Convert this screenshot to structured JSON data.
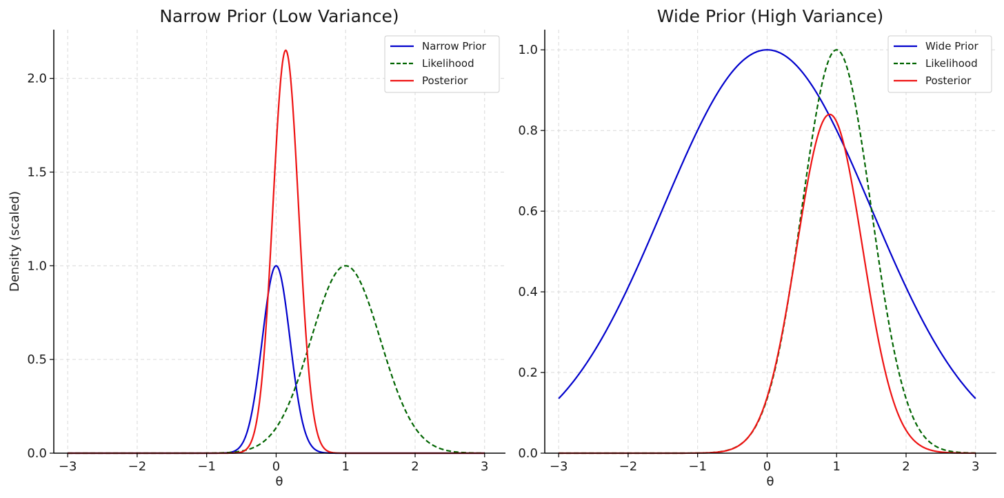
{
  "chart_data": [
    {
      "type": "line",
      "title": "Narrow Prior (Low Variance)",
      "xlabel": "θ",
      "ylabel": "Density (scaled)",
      "xlim": [
        -3.2,
        3.3
      ],
      "ylim": [
        0,
        2.26
      ],
      "xticks": [
        -3,
        -2,
        -1,
        0,
        1,
        2,
        3
      ],
      "yticks": [
        0.0,
        0.5,
        1.0,
        1.5,
        2.0
      ],
      "xtick_labels": [
        "−3",
        "−2",
        "−1",
        "0",
        "1",
        "2",
        "3"
      ],
      "ytick_labels": [
        "0.0",
        "0.5",
        "1.0",
        "1.5",
        "2.0"
      ],
      "grid": true,
      "legend_position": "top-right",
      "x_range": [
        -3,
        3
      ],
      "series": [
        {
          "name": "Narrow Prior",
          "color": "#0000cc",
          "dash": "solid",
          "kind": "gaussian",
          "mean": 0,
          "sd": 0.2,
          "peak": 1.0
        },
        {
          "name": "Likelihood",
          "color": "#006400",
          "dash": "dashed",
          "kind": "gaussian",
          "mean": 1,
          "sd": 0.5,
          "peak": 1.0
        },
        {
          "name": "Posterior",
          "color": "#ee1111",
          "dash": "solid",
          "kind": "gaussian",
          "mean": 0.138,
          "sd": 0.186,
          "peak": 2.15
        }
      ]
    },
    {
      "type": "line",
      "title": "Wide Prior (High Variance)",
      "xlabel": "θ",
      "ylabel": "",
      "xlim": [
        -3.2,
        3.3
      ],
      "ylim": [
        0,
        1.05
      ],
      "xticks": [
        -3,
        -2,
        -1,
        0,
        1,
        2,
        3
      ],
      "yticks": [
        0.0,
        0.2,
        0.4,
        0.6,
        0.8,
        1.0
      ],
      "xtick_labels": [
        "−3",
        "−2",
        "−1",
        "0",
        "1",
        "2",
        "3"
      ],
      "ytick_labels": [
        "0.0",
        "0.2",
        "0.4",
        "0.6",
        "0.8",
        "1.0"
      ],
      "grid": true,
      "legend_position": "top-right",
      "x_range": [
        -3,
        3
      ],
      "series": [
        {
          "name": "Wide Prior",
          "color": "#0000cc",
          "dash": "solid",
          "kind": "gaussian",
          "mean": 0,
          "sd": 1.5,
          "peak": 1.0
        },
        {
          "name": "Likelihood",
          "color": "#006400",
          "dash": "dashed",
          "kind": "gaussian",
          "mean": 1,
          "sd": 0.5,
          "peak": 1.0
        },
        {
          "name": "Posterior",
          "color": "#ee1111",
          "dash": "solid",
          "kind": "gaussian",
          "mean": 0.9,
          "sd": 0.474,
          "peak": 0.84
        }
      ]
    }
  ]
}
